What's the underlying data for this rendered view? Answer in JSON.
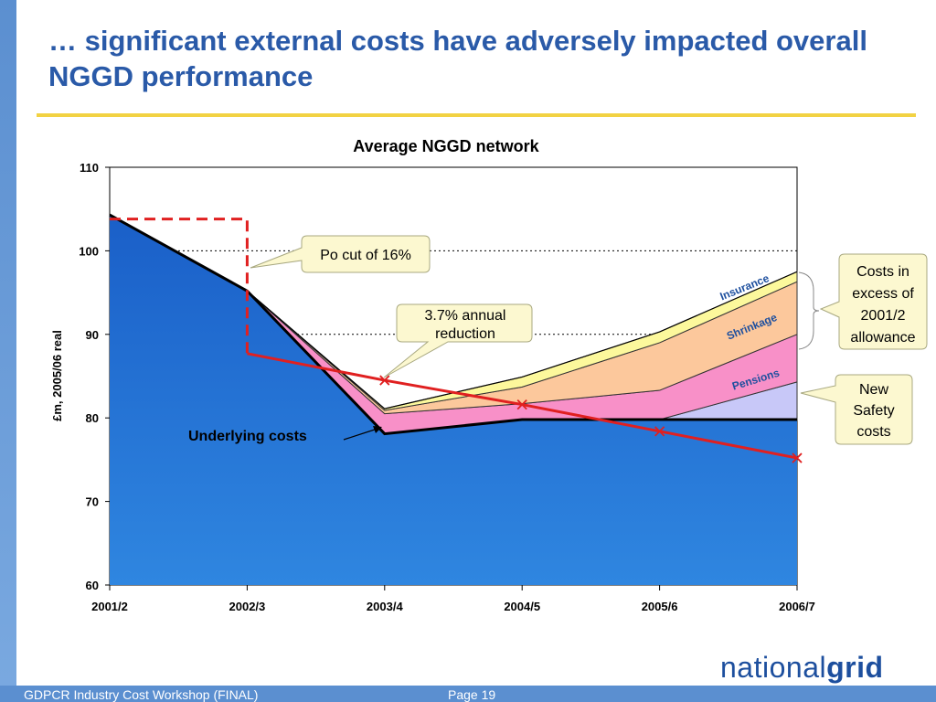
{
  "slide": {
    "title": "… significant external costs have adversely impacted overall NGGD performance",
    "footer_left": "GDPCR Industry Cost Workshop (FINAL)",
    "footer_page": "Page 19",
    "logo_light": "national",
    "logo_bold": "grid"
  },
  "colors": {
    "title": "#2a5aa8",
    "rule": "#f2d243",
    "underlying_top": "#1a5fc8",
    "underlying_bottom": "#2f86e0",
    "pensions": "#f890c8",
    "shrinkage": "#fcc89c",
    "insurance": "#fcf89c",
    "safety": "#c8c8f8",
    "red": "#e02020",
    "callout_fill": "#fcf8d0"
  },
  "chart_data": {
    "type": "area",
    "title": "Average NGGD network",
    "ylabel": "£m, 2005/06 real",
    "ylim": [
      60,
      110
    ],
    "yticks": [
      60,
      70,
      80,
      90,
      100,
      110
    ],
    "categories": [
      "2001/2",
      "2002/3",
      "2003/4",
      "2004/5",
      "2005/6",
      "2006/7"
    ],
    "series": [
      {
        "name": "Underlying costs",
        "values": [
          104.3,
          95.2,
          78.1,
          79.8,
          79.8,
          79.8
        ]
      },
      {
        "name": "New Safety costs",
        "values": [
          0,
          0,
          0,
          0,
          0,
          4.5
        ]
      },
      {
        "name": "Pensions",
        "values": [
          0,
          0,
          2.4,
          1.9,
          3.5,
          5.7
        ]
      },
      {
        "name": "Shrinkage",
        "values": [
          0,
          0,
          0.4,
          2.0,
          5.7,
          6.3
        ]
      },
      {
        "name": "Insurance",
        "values": [
          0,
          0,
          0.2,
          1.2,
          1.3,
          1.2
        ]
      }
    ],
    "allowance_line": {
      "values": [
        87.7,
        84.5,
        81.6,
        78.4,
        75.2
      ],
      "categories": [
        "2002/3",
        "2003/4",
        "2004/5",
        "2005/6",
        "2006/7"
      ]
    },
    "po_cut_box": {
      "y": 103.8
    },
    "layer_labels": {
      "insurance": "Insurance",
      "shrinkage": "Shrinkage",
      "pensions": "Pensions"
    },
    "annotations": {
      "po_cut": "Po cut of 16%",
      "annual_reduction": [
        "3.7% annual",
        "reduction"
      ],
      "costs_excess": [
        "Costs in",
        "excess of",
        "2001/2",
        "allowance"
      ],
      "new_safety": [
        "New",
        "Safety",
        "costs"
      ],
      "underlying": "Underlying costs"
    }
  }
}
